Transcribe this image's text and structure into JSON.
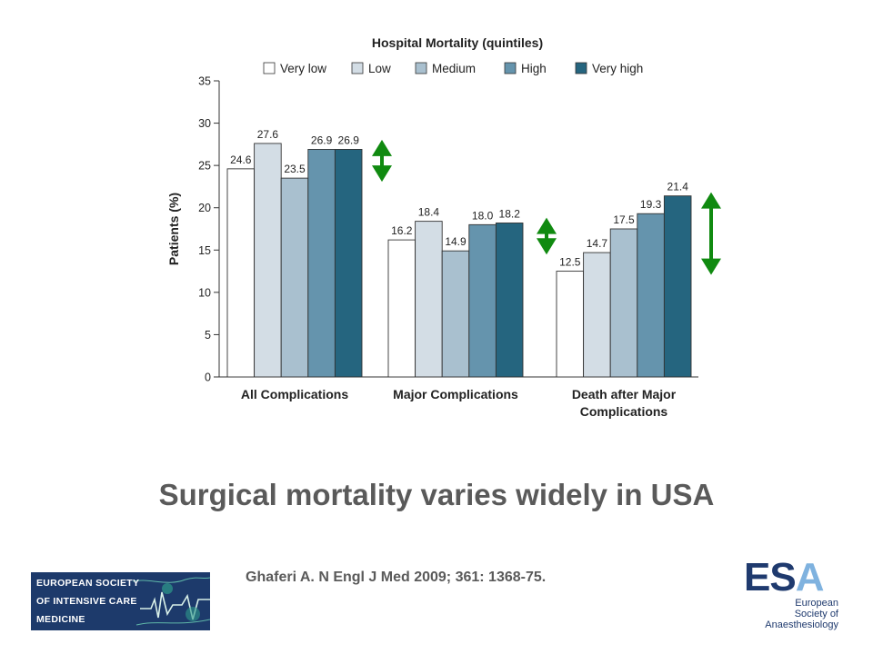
{
  "chart_data": {
    "type": "bar",
    "title": "Hospital Mortality (quintiles)",
    "ylabel": "Patients (%)",
    "xlabel": "",
    "ylim": [
      0,
      35
    ],
    "yticks": [
      0,
      5,
      10,
      15,
      20,
      25,
      30,
      35
    ],
    "grid": false,
    "legend_position": "top",
    "categories": [
      "All Complications",
      "Major Complications",
      "Death after Major Complications"
    ],
    "category_label_lines": [
      [
        "All Complications"
      ],
      [
        "Major Complications"
      ],
      [
        "Death after Major",
        "Complications"
      ]
    ],
    "series": [
      {
        "name": "Very low",
        "color": "#ffffff",
        "values": [
          24.6,
          16.2,
          12.5
        ]
      },
      {
        "name": "Low",
        "color": "#d3dde5",
        "values": [
          27.6,
          18.4,
          14.7
        ]
      },
      {
        "name": "Medium",
        "color": "#a9c0cf",
        "values": [
          23.5,
          14.9,
          17.5
        ]
      },
      {
        "name": "High",
        "color": "#6594ad",
        "values": [
          26.9,
          18.0,
          19.3
        ]
      },
      {
        "name": "Very high",
        "color": "#25657f",
        "values": [
          26.9,
          18.2,
          21.4
        ]
      }
    ],
    "data_labels": [
      [
        "24.6",
        "16.2",
        "12.5"
      ],
      [
        "27.6",
        "18.4",
        "14.7"
      ],
      [
        "23.5",
        "14.9",
        "17.5"
      ],
      [
        "26.9",
        "18.0",
        "19.3"
      ],
      [
        "26.9",
        "18.2",
        "21.4"
      ]
    ],
    "range_arrows": [
      {
        "category": "All Complications",
        "low": 23.5,
        "high": 27.6
      },
      {
        "category": "Major Complications",
        "low": 14.9,
        "high": 18.4
      },
      {
        "category": "Death after Major Complications",
        "low": 12.5,
        "high": 21.4
      }
    ],
    "arrow_color": "#108a10"
  },
  "slide": {
    "title": "Surgical mortality varies widely in USA",
    "citation": "Ghaferi A. N Engl J Med 2009; 361: 1368-75."
  },
  "logos": {
    "esicm_lines": [
      "EUROPEAN SOCIETY",
      "OF INTENSIVE CARE",
      "MEDICINE"
    ],
    "esa_mark_es": "ES",
    "esa_mark_a": "A",
    "esa_name_lines": [
      "European",
      "Society of",
      "Anaesthesiology"
    ]
  }
}
